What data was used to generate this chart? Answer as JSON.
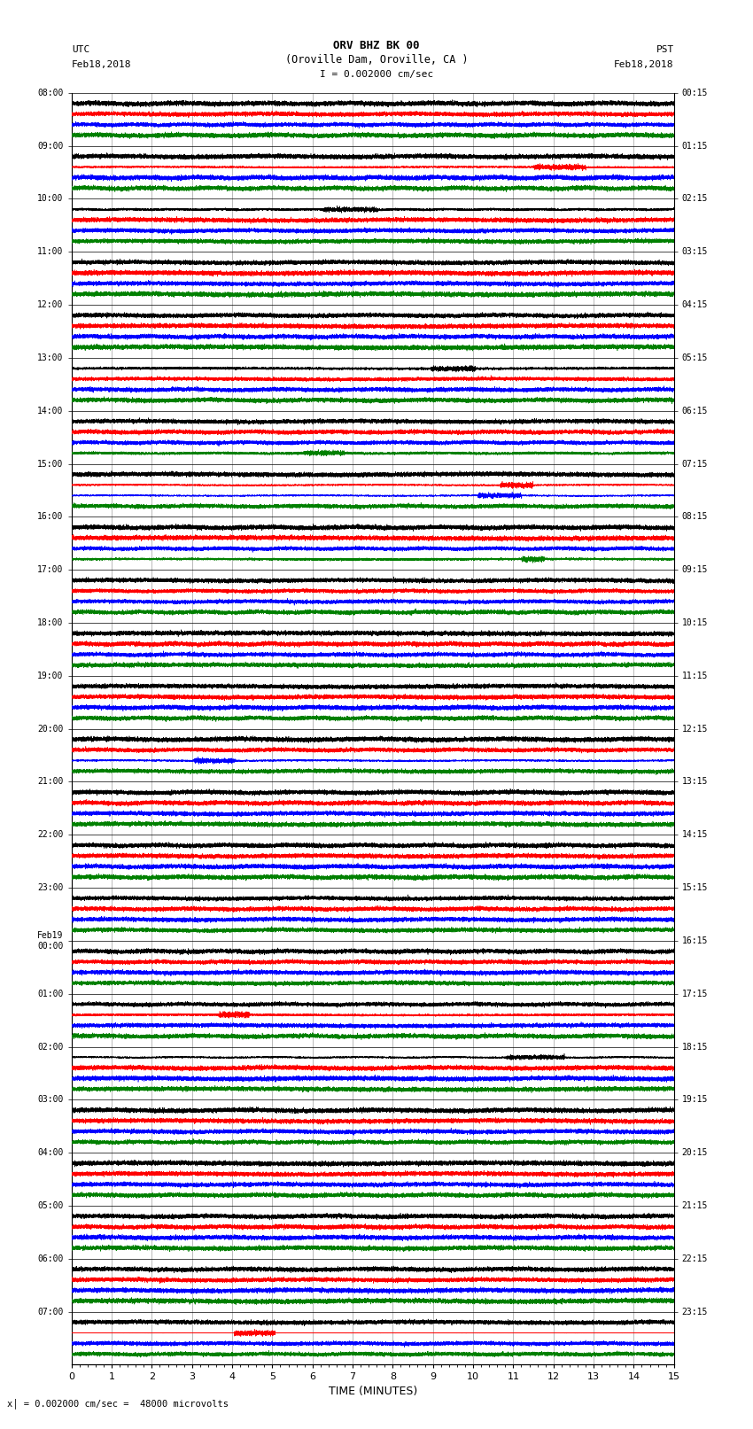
{
  "title_line1": "ORV BHZ BK 00",
  "title_line2": "(Oroville Dam, Oroville, CA )",
  "scale_label": "I = 0.002000 cm/sec",
  "bottom_label": "x│= 0.002000 cm/sec =  48000 microvolts",
  "xlabel": "TIME (MINUTES)",
  "left_times_utc": [
    "08:00",
    "09:00",
    "10:00",
    "11:00",
    "12:00",
    "13:00",
    "14:00",
    "15:00",
    "16:00",
    "17:00",
    "18:00",
    "19:00",
    "20:00",
    "21:00",
    "22:00",
    "23:00",
    "Feb19\n00:00",
    "01:00",
    "02:00",
    "03:00",
    "04:00",
    "05:00",
    "06:00",
    "07:00"
  ],
  "right_times_pst": [
    "00:15",
    "01:15",
    "02:15",
    "03:15",
    "04:15",
    "05:15",
    "06:15",
    "07:15",
    "08:15",
    "09:15",
    "10:15",
    "11:15",
    "12:15",
    "13:15",
    "14:15",
    "15:15",
    "16:15",
    "17:15",
    "18:15",
    "19:15",
    "20:15",
    "21:15",
    "22:15",
    "23:15"
  ],
  "num_rows": 24,
  "num_traces_per_row": 4,
  "colors": [
    "black",
    "red",
    "blue",
    "green"
  ],
  "xlim": [
    0,
    15
  ],
  "bg_color": "white",
  "grid_color": "#888888",
  "fig_width": 8.5,
  "fig_height": 16.13,
  "dpi": 100
}
